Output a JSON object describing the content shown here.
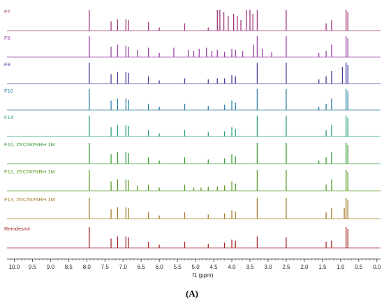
{
  "figure": {
    "caption": "(A)"
  },
  "chart_data": {
    "type": "line",
    "title": "",
    "xlabel": "f1 (ppm)",
    "ylabel": "",
    "xlim": [
      10.2,
      -0.1
    ],
    "x_reversed": true,
    "grid": false,
    "x_ticks": [
      "10.0",
      "9.5",
      "9.0",
      "8.5",
      "8.0",
      "7.5",
      "7.0",
      "6.5",
      "6.0",
      "5.5",
      "5.0",
      "4.5",
      "4.0",
      "3.5",
      "3.0",
      "2.5",
      "2.0",
      "1.5",
      "1.0",
      "0.5",
      "0.0"
    ],
    "series": [
      {
        "name": "F7",
        "color": "#a3377a",
        "peaks": [
          [
            7.93,
            1
          ],
          [
            7.33,
            0.45
          ],
          [
            7.15,
            0.55
          ],
          [
            6.92,
            0.55
          ],
          [
            6.85,
            0.5
          ],
          [
            6.3,
            0.4
          ],
          [
            6.0,
            0.15
          ],
          [
            5.3,
            0.35
          ],
          [
            4.65,
            0.15
          ],
          [
            4.4,
            1
          ],
          [
            4.33,
            1
          ],
          [
            4.22,
            0.9
          ],
          [
            4.1,
            0.7
          ],
          [
            3.95,
            0.8
          ],
          [
            3.85,
            0.7
          ],
          [
            3.75,
            0.5
          ],
          [
            3.6,
            1
          ],
          [
            3.5,
            1
          ],
          [
            3.42,
            0.8
          ],
          [
            3.3,
            1
          ],
          [
            2.5,
            1
          ],
          [
            1.4,
            0.35
          ],
          [
            1.25,
            0.5
          ],
          [
            0.85,
            1
          ],
          [
            0.8,
            0.9
          ]
        ]
      },
      {
        "name": "F8",
        "color": "#9a44a8",
        "peaks": [
          [
            7.93,
            1
          ],
          [
            7.33,
            0.5
          ],
          [
            7.15,
            0.6
          ],
          [
            6.92,
            0.55
          ],
          [
            6.85,
            0.5
          ],
          [
            6.6,
            0.35
          ],
          [
            6.3,
            0.45
          ],
          [
            6.0,
            0.2
          ],
          [
            5.6,
            0.45
          ],
          [
            5.2,
            0.35
          ],
          [
            5.05,
            0.3
          ],
          [
            4.9,
            0.4
          ],
          [
            4.7,
            0.45
          ],
          [
            4.55,
            0.3
          ],
          [
            4.4,
            0.35
          ],
          [
            4.2,
            0.25
          ],
          [
            4.0,
            0.4
          ],
          [
            3.9,
            0.35
          ],
          [
            3.7,
            0.3
          ],
          [
            3.4,
            0.6
          ],
          [
            3.3,
            1
          ],
          [
            3.15,
            0.4
          ],
          [
            2.9,
            0.25
          ],
          [
            2.5,
            1
          ],
          [
            1.6,
            0.2
          ],
          [
            1.4,
            0.3
          ],
          [
            1.25,
            0.6
          ],
          [
            0.85,
            1
          ],
          [
            0.8,
            0.9
          ]
        ]
      },
      {
        "name": "F9",
        "color": "#3d3d9e",
        "peaks": [
          [
            7.93,
            1
          ],
          [
            7.33,
            0.45
          ],
          [
            7.15,
            0.55
          ],
          [
            6.92,
            0.55
          ],
          [
            6.85,
            0.5
          ],
          [
            6.3,
            0.35
          ],
          [
            6.0,
            0.15
          ],
          [
            5.3,
            0.25
          ],
          [
            4.65,
            0.2
          ],
          [
            4.4,
            0.25
          ],
          [
            4.2,
            0.25
          ],
          [
            4.0,
            0.4
          ],
          [
            3.9,
            0.35
          ],
          [
            3.3,
            1
          ],
          [
            2.5,
            1
          ],
          [
            1.6,
            0.2
          ],
          [
            1.4,
            0.35
          ],
          [
            1.25,
            0.6
          ],
          [
            0.95,
            0.8
          ],
          [
            0.85,
            1
          ],
          [
            0.8,
            0.9
          ]
        ]
      },
      {
        "name": "F10",
        "color": "#2c7fa3",
        "peaks": [
          [
            7.93,
            1
          ],
          [
            7.33,
            0.45
          ],
          [
            7.15,
            0.55
          ],
          [
            6.92,
            0.55
          ],
          [
            6.85,
            0.5
          ],
          [
            6.3,
            0.3
          ],
          [
            6.0,
            0.15
          ],
          [
            5.3,
            0.3
          ],
          [
            4.65,
            0.2
          ],
          [
            4.2,
            0.25
          ],
          [
            4.0,
            0.45
          ],
          [
            3.9,
            0.35
          ],
          [
            3.3,
            1
          ],
          [
            2.5,
            1
          ],
          [
            1.6,
            0.15
          ],
          [
            1.4,
            0.3
          ],
          [
            1.25,
            0.55
          ],
          [
            0.85,
            1
          ],
          [
            0.8,
            0.9
          ]
        ]
      },
      {
        "name": "F14",
        "color": "#2aa07a",
        "peaks": [
          [
            7.93,
            1
          ],
          [
            7.33,
            0.45
          ],
          [
            7.15,
            0.55
          ],
          [
            6.92,
            0.55
          ],
          [
            6.85,
            0.5
          ],
          [
            6.3,
            0.3
          ],
          [
            6.0,
            0.15
          ],
          [
            5.3,
            0.3
          ],
          [
            4.65,
            0.2
          ],
          [
            4.2,
            0.25
          ],
          [
            4.0,
            0.45
          ],
          [
            3.9,
            0.35
          ],
          [
            3.3,
            1
          ],
          [
            2.5,
            1
          ],
          [
            1.4,
            0.3
          ],
          [
            1.25,
            0.55
          ],
          [
            0.85,
            1
          ],
          [
            0.8,
            0.9
          ]
        ]
      },
      {
        "name": "F10, 25'C/60%RH 1M",
        "color": "#3a9a3a",
        "peaks": [
          [
            7.93,
            1
          ],
          [
            7.33,
            0.45
          ],
          [
            7.15,
            0.55
          ],
          [
            6.92,
            0.55
          ],
          [
            6.85,
            0.5
          ],
          [
            6.3,
            0.3
          ],
          [
            6.0,
            0.15
          ],
          [
            5.3,
            0.3
          ],
          [
            4.65,
            0.2
          ],
          [
            4.2,
            0.25
          ],
          [
            4.0,
            0.45
          ],
          [
            3.9,
            0.35
          ],
          [
            3.3,
            1
          ],
          [
            2.5,
            1
          ],
          [
            1.6,
            0.15
          ],
          [
            1.4,
            0.3
          ],
          [
            1.25,
            0.55
          ],
          [
            0.85,
            1
          ],
          [
            0.8,
            0.9
          ]
        ]
      },
      {
        "name": "F12, 25'C/60%RH 1M",
        "color": "#5b9a2a",
        "peaks": [
          [
            7.93,
            1
          ],
          [
            7.33,
            0.45
          ],
          [
            7.15,
            0.55
          ],
          [
            6.92,
            0.55
          ],
          [
            6.85,
            0.5
          ],
          [
            6.6,
            0.25
          ],
          [
            6.3,
            0.3
          ],
          [
            6.0,
            0.15
          ],
          [
            5.3,
            0.3
          ],
          [
            5.05,
            0.15
          ],
          [
            4.85,
            0.15
          ],
          [
            4.65,
            0.2
          ],
          [
            4.4,
            0.2
          ],
          [
            4.2,
            0.25
          ],
          [
            4.0,
            0.45
          ],
          [
            3.9,
            0.35
          ],
          [
            3.3,
            1
          ],
          [
            2.5,
            1
          ],
          [
            1.4,
            0.3
          ],
          [
            1.25,
            0.55
          ],
          [
            0.85,
            1
          ],
          [
            0.8,
            0.9
          ]
        ]
      },
      {
        "name": "F13, 25'C/60%RH 1M",
        "color": "#a57a2a",
        "peaks": [
          [
            7.93,
            1
          ],
          [
            7.33,
            0.45
          ],
          [
            7.15,
            0.55
          ],
          [
            6.92,
            0.55
          ],
          [
            6.85,
            0.5
          ],
          [
            6.3,
            0.3
          ],
          [
            6.0,
            0.15
          ],
          [
            5.3,
            0.3
          ],
          [
            4.65,
            0.2
          ],
          [
            4.2,
            0.25
          ],
          [
            4.0,
            0.4
          ],
          [
            3.9,
            0.35
          ],
          [
            3.3,
            1
          ],
          [
            2.5,
            1
          ],
          [
            1.4,
            0.3
          ],
          [
            1.25,
            0.5
          ],
          [
            0.9,
            0.5
          ],
          [
            0.85,
            1
          ],
          [
            0.8,
            0.9
          ]
        ]
      },
      {
        "name": "Remdesivir",
        "color": "#a52a2a",
        "peaks": [
          [
            7.93,
            1
          ],
          [
            7.33,
            0.45
          ],
          [
            7.15,
            0.55
          ],
          [
            6.92,
            0.55
          ],
          [
            6.85,
            0.5
          ],
          [
            6.3,
            0.3
          ],
          [
            6.0,
            0.15
          ],
          [
            5.3,
            0.3
          ],
          [
            4.65,
            0.2
          ],
          [
            4.2,
            0.25
          ],
          [
            4.0,
            0.4
          ],
          [
            3.9,
            0.35
          ],
          [
            3.3,
            0.55
          ],
          [
            2.5,
            0.5
          ],
          [
            1.4,
            0.3
          ],
          [
            1.25,
            0.35
          ],
          [
            0.85,
            1
          ],
          [
            0.8,
            0.9
          ]
        ]
      }
    ]
  }
}
